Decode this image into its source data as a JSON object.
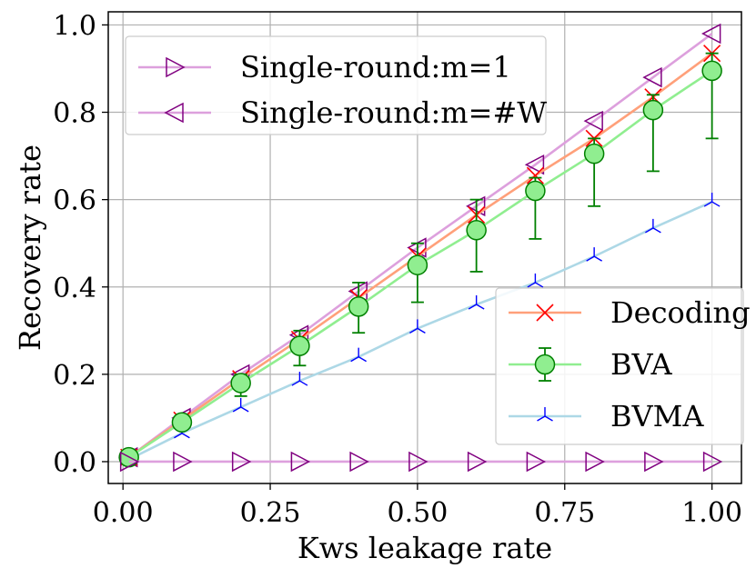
{
  "chart_data": {
    "type": "line",
    "title": "",
    "xlabel": "Kws leakage rate",
    "ylabel": "Recovery rate",
    "xlim": [
      -0.025,
      1.05
    ],
    "ylim": [
      -0.05,
      1.03
    ],
    "grid": true,
    "xticks": [
      0.0,
      0.25,
      0.5,
      0.75,
      1.0
    ],
    "xtick_labels": [
      "0.00",
      "0.25",
      "0.50",
      "0.75",
      "1.00"
    ],
    "yticks": [
      0.0,
      0.2,
      0.4,
      0.6,
      0.8,
      1.0
    ],
    "ytick_labels": [
      "0.0",
      "0.2",
      "0.4",
      "0.6",
      "0.8",
      "1.0"
    ],
    "x": [
      0.01,
      0.1,
      0.2,
      0.3,
      0.4,
      0.5,
      0.6,
      0.7,
      0.8,
      0.9,
      1.0
    ],
    "series": [
      {
        "name": "Single-round:m=1",
        "marker": "triangle-right",
        "line_color": "#dda0dd",
        "marker_color": "#800080",
        "values": [
          0.0,
          0.0,
          0.0,
          0.0,
          0.0,
          0.0,
          0.0,
          0.0,
          0.0,
          0.0,
          0.0
        ]
      },
      {
        "name": "Single-round:m=#W",
        "marker": "triangle-left",
        "line_color": "#dda0dd",
        "marker_color": "#800080",
        "values": [
          0.01,
          0.1,
          0.2,
          0.29,
          0.39,
          0.49,
          0.585,
          0.68,
          0.78,
          0.88,
          0.98
        ]
      },
      {
        "name": "Decoding",
        "marker": "x",
        "line_color": "#ffa07a",
        "marker_color": "#ff0000",
        "values": [
          0.01,
          0.095,
          0.19,
          0.28,
          0.375,
          0.47,
          0.565,
          0.655,
          0.74,
          0.835,
          0.935
        ]
      },
      {
        "name": "BVA",
        "marker": "circle",
        "line_color": "#90ee90",
        "marker_color": "#008000",
        "fill_color": "#90ee90",
        "values": [
          0.01,
          0.09,
          0.18,
          0.265,
          0.355,
          0.45,
          0.53,
          0.62,
          0.705,
          0.805,
          0.895
        ],
        "error_low": [
          0.01,
          0.08,
          0.15,
          0.22,
          0.295,
          0.365,
          0.435,
          0.51,
          0.585,
          0.665,
          0.74
        ],
        "error_high": [
          0.01,
          0.1,
          0.2,
          0.3,
          0.41,
          0.5,
          0.6,
          0.65,
          0.74,
          0.84,
          0.935
        ]
      },
      {
        "name": "BVMA",
        "marker": "tri-down",
        "line_color": "#add8e6",
        "marker_color": "#0000ff",
        "values": [
          0.005,
          0.065,
          0.125,
          0.185,
          0.24,
          0.305,
          0.36,
          0.41,
          0.47,
          0.535,
          0.595
        ]
      }
    ],
    "legends": [
      {
        "placement": "top-left",
        "entries": [
          "Single-round:m=1",
          "Single-round:m=#W"
        ]
      },
      {
        "placement": "bottom-right",
        "entries": [
          "Decoding",
          "BVA",
          "BVMA"
        ]
      }
    ]
  }
}
